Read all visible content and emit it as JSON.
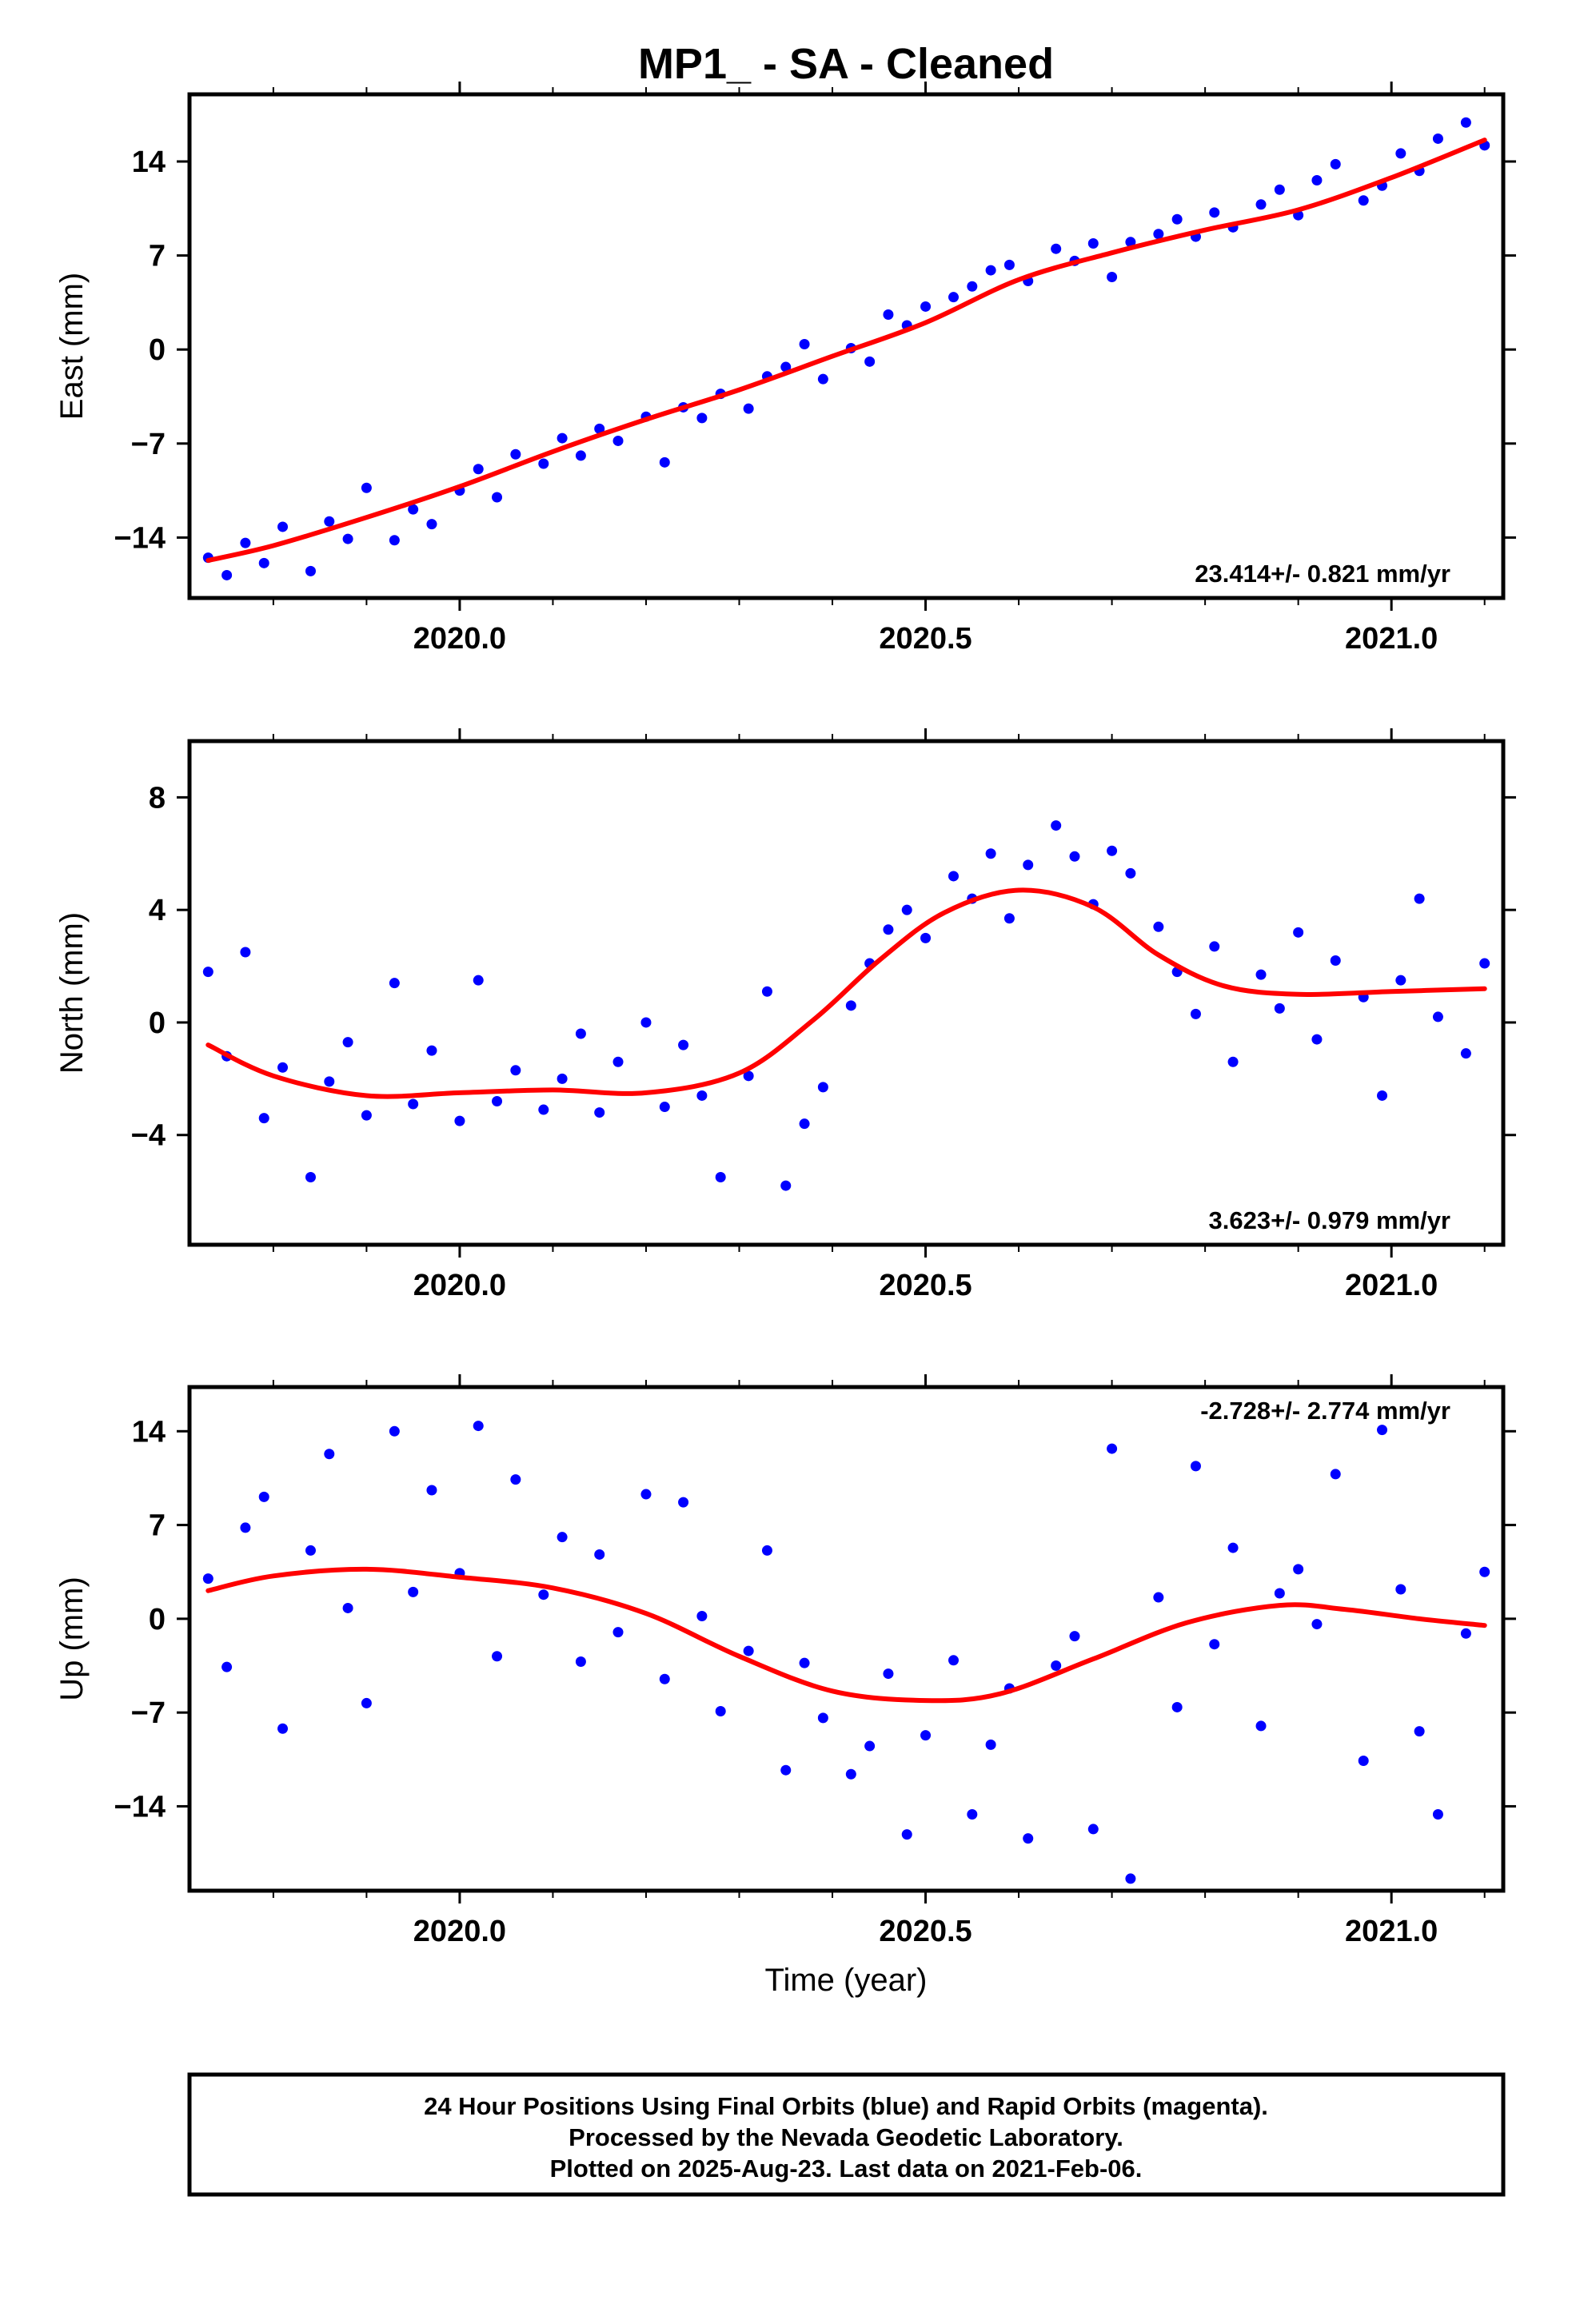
{
  "title": "MP1_  - SA - Cleaned",
  "x_axis_label": "Time (year)",
  "caption": [
    "24 Hour Positions Using Final Orbits (blue) and Rapid Orbits (magenta).",
    "Processed by the Nevada Geodetic Laboratory.",
    "Plotted on 2025-Aug-23. Last data on 2021-Feb-06."
  ],
  "colors": {
    "points": "#0000ff",
    "fit": "#ff0000",
    "frame": "#000000"
  },
  "chart_data": [
    {
      "type": "scatter",
      "ylabel": "East (mm)",
      "xlim": [
        2019.71,
        2021.12
      ],
      "ylim": [
        -18.5,
        19
      ],
      "x_ticks": [
        2020.0,
        2020.5,
        2021.0
      ],
      "x_tick_labels": [
        "2020.0",
        "2020.5",
        "2021.0"
      ],
      "y_ticks": [
        -14,
        -7,
        0,
        7,
        14
      ],
      "y_tick_labels": [
        "−14",
        "−7",
        "0",
        "7",
        "14"
      ],
      "rate": "23.414+/- 0.821 mm/yr",
      "rate_position": "bottom-right",
      "fit": {
        "x": [
          2019.73,
          2019.8,
          2019.9,
          2020.0,
          2020.1,
          2020.2,
          2020.3,
          2020.4,
          2020.5,
          2020.6,
          2020.7,
          2020.8,
          2020.9,
          2021.0,
          2021.1
        ],
        "y": [
          -15.7,
          -14.6,
          -12.5,
          -10.2,
          -7.6,
          -5.2,
          -3.0,
          -0.5,
          2.0,
          5.2,
          7.2,
          8.9,
          10.4,
          12.8,
          15.6
        ]
      },
      "series": [
        {
          "name": "Final Orbits",
          "x": [
            2019.73,
            2019.75,
            2019.77,
            2019.79,
            2019.81,
            2019.84,
            2019.86,
            2019.88,
            2019.9,
            2019.93,
            2019.95,
            2019.97,
            2020.0,
            2020.02,
            2020.04,
            2020.06,
            2020.09,
            2020.11,
            2020.13,
            2020.15,
            2020.17,
            2020.2,
            2020.22,
            2020.24,
            2020.26,
            2020.28,
            2020.31,
            2020.33,
            2020.35,
            2020.37,
            2020.39,
            2020.42,
            2020.44,
            2020.46,
            2020.48,
            2020.5,
            2020.53,
            2020.55,
            2020.57,
            2020.59,
            2020.61,
            2020.64,
            2020.66,
            2020.68,
            2020.7,
            2020.72,
            2020.75,
            2020.77,
            2020.79,
            2020.81,
            2020.83,
            2020.86,
            2020.88,
            2020.9,
            2020.92,
            2020.94,
            2020.97,
            2020.99,
            2021.01,
            2021.03,
            2021.05,
            2021.08,
            2021.1
          ],
          "y": [
            -15.5,
            -16.8,
            -14.4,
            -15.9,
            -13.2,
            -16.5,
            -12.8,
            -14.1,
            -10.3,
            -14.2,
            -11.9,
            -13.0,
            -10.5,
            -8.9,
            -11.0,
            -7.8,
            -8.5,
            -6.6,
            -7.9,
            -5.9,
            -6.8,
            -5.0,
            -8.4,
            -4.3,
            -5.1,
            -3.3,
            -4.4,
            -2.0,
            -1.3,
            0.4,
            -2.2,
            0.1,
            -0.9,
            2.6,
            1.8,
            3.2,
            3.9,
            4.7,
            5.9,
            6.3,
            5.1,
            7.5,
            6.6,
            7.9,
            5.4,
            8.0,
            8.6,
            9.7,
            8.4,
            10.2,
            9.1,
            10.8,
            11.9,
            10.0,
            12.6,
            13.8,
            11.1,
            12.2,
            14.6,
            13.3,
            15.7,
            16.9,
            15.2
          ]
        }
      ]
    },
    {
      "type": "scatter",
      "ylabel": "North (mm)",
      "xlim": [
        2019.71,
        2021.12
      ],
      "ylim": [
        -7.9,
        10
      ],
      "x_ticks": [
        2020.0,
        2020.5,
        2021.0
      ],
      "x_tick_labels": [
        "2020.0",
        "2020.5",
        "2021.0"
      ],
      "y_ticks": [
        -4,
        0,
        4,
        8
      ],
      "y_tick_labels": [
        "−4",
        "0",
        "4",
        "8"
      ],
      "rate": "3.623+/- 0.979 mm/yr",
      "rate_position": "bottom-right",
      "fit": {
        "x": [
          2019.73,
          2019.8,
          2019.9,
          2020.0,
          2020.1,
          2020.2,
          2020.3,
          2020.38,
          2020.45,
          2020.52,
          2020.6,
          2020.68,
          2020.75,
          2020.82,
          2020.9,
          2021.0,
          2021.1
        ],
        "y": [
          -0.8,
          -1.9,
          -2.6,
          -2.5,
          -2.4,
          -2.5,
          -1.8,
          0.1,
          2.2,
          3.9,
          4.7,
          4.1,
          2.4,
          1.3,
          1.0,
          1.1,
          1.2
        ]
      },
      "series": [
        {
          "name": "Final Orbits",
          "x": [
            2019.73,
            2019.75,
            2019.77,
            2019.79,
            2019.81,
            2019.84,
            2019.86,
            2019.88,
            2019.9,
            2019.93,
            2019.95,
            2019.97,
            2020.0,
            2020.02,
            2020.04,
            2020.06,
            2020.09,
            2020.11,
            2020.13,
            2020.15,
            2020.17,
            2020.2,
            2020.22,
            2020.24,
            2020.26,
            2020.28,
            2020.31,
            2020.33,
            2020.35,
            2020.37,
            2020.39,
            2020.42,
            2020.44,
            2020.46,
            2020.48,
            2020.5,
            2020.53,
            2020.55,
            2020.57,
            2020.59,
            2020.61,
            2020.64,
            2020.66,
            2020.68,
            2020.7,
            2020.72,
            2020.75,
            2020.77,
            2020.79,
            2020.81,
            2020.83,
            2020.86,
            2020.88,
            2020.9,
            2020.92,
            2020.94,
            2020.97,
            2020.99,
            2021.01,
            2021.03,
            2021.05,
            2021.08,
            2021.1
          ],
          "y": [
            1.8,
            -1.2,
            2.5,
            -3.4,
            -1.6,
            -5.5,
            -2.1,
            -0.7,
            -3.3,
            1.4,
            -2.9,
            -1.0,
            -3.5,
            1.5,
            -2.8,
            -1.7,
            -3.1,
            -2.0,
            -0.4,
            -3.2,
            -1.4,
            0.0,
            -3.0,
            -0.8,
            -2.6,
            -5.5,
            -1.9,
            1.1,
            -5.8,
            -3.6,
            -2.3,
            0.6,
            2.1,
            3.3,
            4.0,
            3.0,
            5.2,
            4.4,
            6.0,
            3.7,
            5.6,
            7.0,
            5.9,
            4.2,
            6.1,
            5.3,
            3.4,
            1.8,
            0.3,
            2.7,
            -1.4,
            1.7,
            0.5,
            3.2,
            -0.6,
            2.2,
            0.9,
            -2.6,
            1.5,
            4.4,
            0.2,
            -1.1,
            2.1
          ]
        }
      ]
    },
    {
      "type": "scatter",
      "ylabel": "Up (mm)",
      "xlim": [
        2019.71,
        2021.12
      ],
      "ylim": [
        -20.3,
        17.3
      ],
      "x_ticks": [
        2020.0,
        2020.5,
        2021.0
      ],
      "x_tick_labels": [
        "2020.0",
        "2020.5",
        "2021.0"
      ],
      "y_ticks": [
        -14,
        -7,
        0,
        7,
        14
      ],
      "y_tick_labels": [
        "−14",
        "−7",
        "0",
        "7",
        "14"
      ],
      "rate": "-2.728+/- 2.774 mm/yr",
      "rate_position": "top-right",
      "fit": {
        "x": [
          2019.73,
          2019.8,
          2019.9,
          2020.0,
          2020.1,
          2020.2,
          2020.3,
          2020.4,
          2020.5,
          2020.58,
          2020.68,
          2020.78,
          2020.88,
          2020.95,
          2021.03,
          2021.1
        ],
        "y": [
          2.1,
          3.2,
          3.7,
          3.1,
          2.3,
          0.4,
          -2.8,
          -5.4,
          -6.1,
          -5.6,
          -3.0,
          -0.3,
          1.0,
          0.7,
          0.0,
          -0.5
        ]
      },
      "series": [
        {
          "name": "Final Orbits",
          "x": [
            2019.73,
            2019.75,
            2019.77,
            2019.79,
            2019.81,
            2019.84,
            2019.86,
            2019.88,
            2019.9,
            2019.93,
            2019.95,
            2019.97,
            2020.0,
            2020.02,
            2020.04,
            2020.06,
            2020.09,
            2020.11,
            2020.13,
            2020.15,
            2020.17,
            2020.2,
            2020.22,
            2020.24,
            2020.26,
            2020.28,
            2020.31,
            2020.33,
            2020.35,
            2020.37,
            2020.39,
            2020.42,
            2020.44,
            2020.46,
            2020.48,
            2020.5,
            2020.53,
            2020.55,
            2020.57,
            2020.59,
            2020.61,
            2020.64,
            2020.66,
            2020.68,
            2020.7,
            2020.72,
            2020.75,
            2020.77,
            2020.79,
            2020.81,
            2020.83,
            2020.86,
            2020.88,
            2020.9,
            2020.92,
            2020.94,
            2020.97,
            2020.99,
            2021.01,
            2021.03,
            2021.05,
            2021.08,
            2021.1
          ],
          "y": [
            3.0,
            -3.6,
            6.8,
            9.1,
            -8.2,
            5.1,
            12.3,
            0.8,
            -6.3,
            14.0,
            2.0,
            9.6,
            3.4,
            14.4,
            -2.8,
            10.4,
            1.8,
            6.1,
            -3.2,
            4.8,
            -1.0,
            9.3,
            -4.5,
            8.7,
            0.2,
            -6.9,
            -2.4,
            5.1,
            -11.3,
            -3.3,
            -7.4,
            -11.6,
            -9.5,
            -4.1,
            -16.1,
            -8.7,
            -3.1,
            -14.6,
            -9.4,
            -5.2,
            -16.4,
            -3.5,
            -1.3,
            -15.7,
            12.7,
            -19.4,
            1.6,
            -6.6,
            11.4,
            -1.9,
            5.3,
            -8.0,
            1.9,
            3.7,
            -0.4,
            10.8,
            -10.6,
            14.1,
            2.2,
            -8.4,
            -14.6,
            -1.1,
            3.5
          ]
        }
      ]
    }
  ]
}
